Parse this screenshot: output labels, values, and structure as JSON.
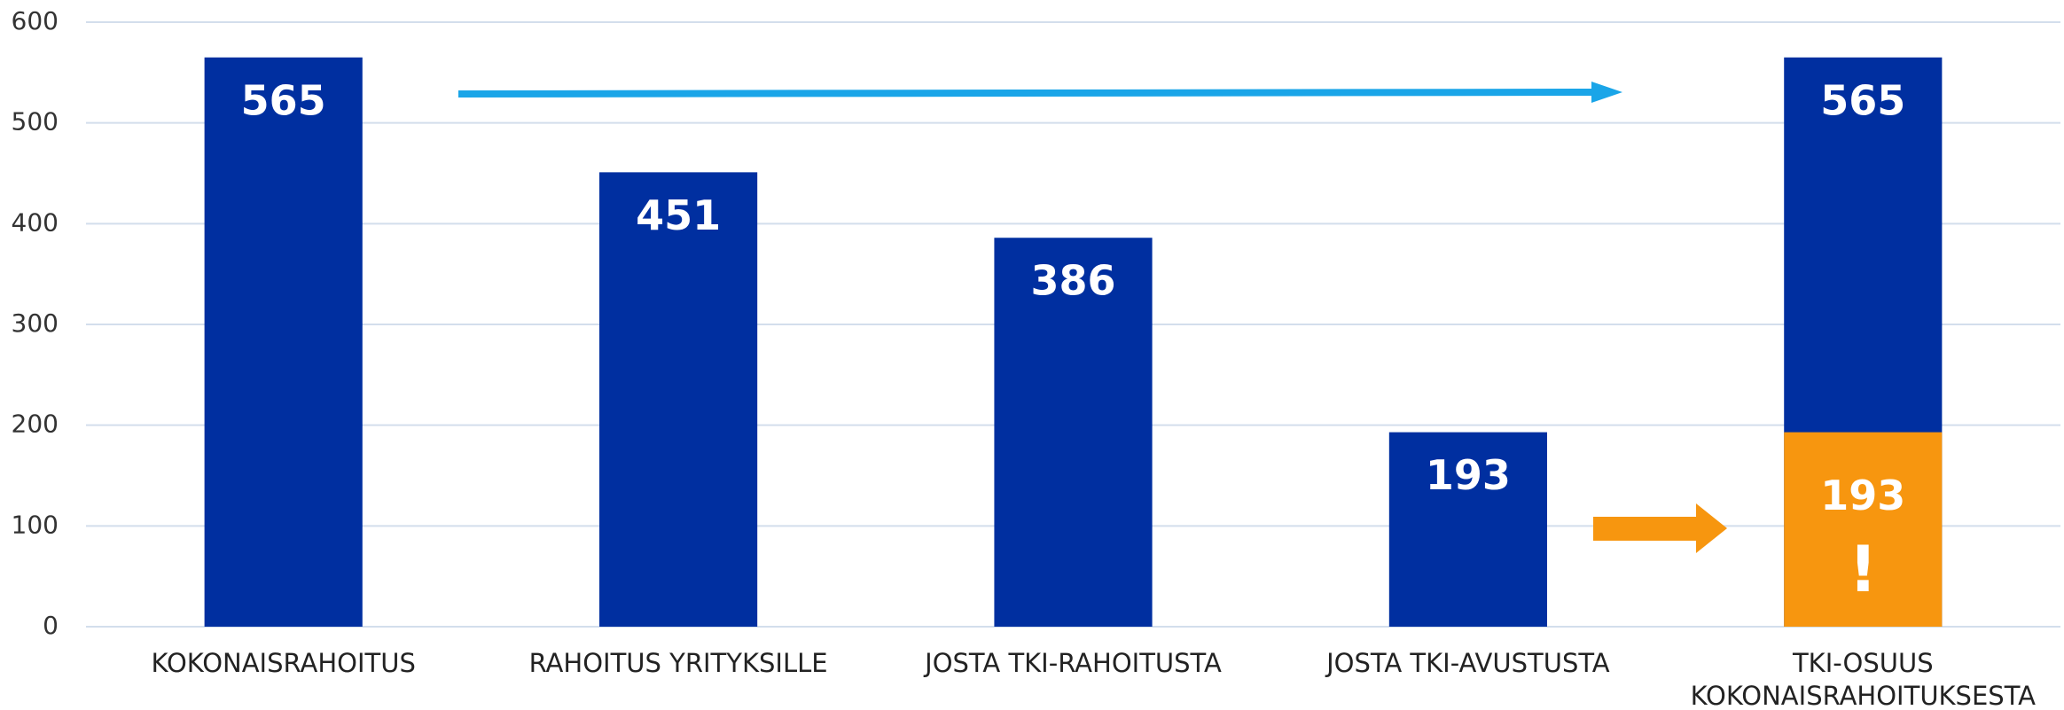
{
  "chart_data": {
    "type": "bar",
    "categories": [
      "KOKONAISRAHOITUS",
      "RAHOITUS YRITYKSILLE",
      "JOSTA TKI-RAHOITUSTA",
      "JOSTA TKI-AVUSTUSTA",
      [
        "TKI-OSUUS",
        "KOKONAISRAHOITUKSESTA"
      ]
    ],
    "values": [
      565,
      451,
      386,
      193,
      565
    ],
    "color": "#002fa0",
    "highlight": {
      "values": [
        null,
        null,
        null,
        null,
        193
      ],
      "color": "#f7960f",
      "annotation": "!"
    },
    "ylim": [
      0,
      600
    ],
    "yticks": [
      0,
      100,
      200,
      300,
      400,
      500,
      600
    ],
    "grid": true
  }
}
